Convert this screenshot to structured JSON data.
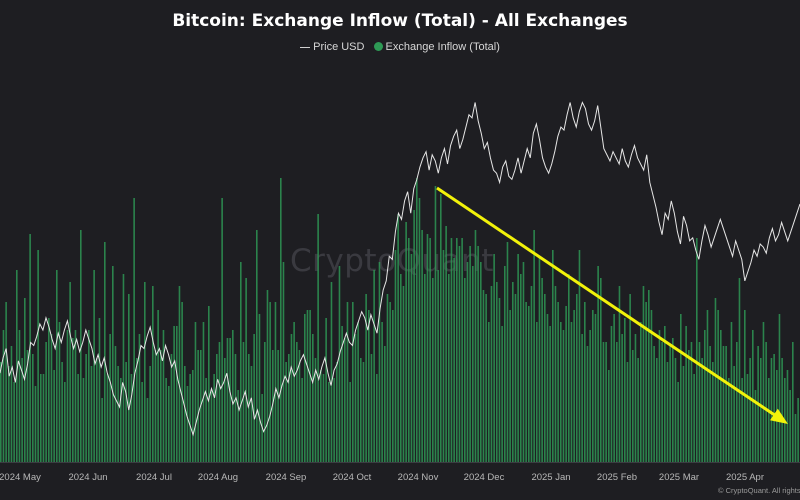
{
  "title": "Bitcoin: Exchange Inflow (Total) - All Exchanges",
  "legend": {
    "price_label": "Price USD",
    "inflow_label": "Exchange Inflow (Total)"
  },
  "watermark": "CryptoQuant",
  "copyright": "© CryptoQuant. All rights",
  "colors": {
    "background": "#1e1e22",
    "inflow_bar": "#2e9a55",
    "price_line": "#e6e6e6",
    "trend_arrow": "#f2f20a"
  },
  "chart_data": {
    "type": "bar",
    "title": "Bitcoin: Exchange Inflow (Total) - All Exchanges",
    "x_range": [
      "2024-04-17",
      "2025-04-28"
    ],
    "x_ticks": [
      "2024 May",
      "2024 Jun",
      "2024 Jul",
      "2024 Aug",
      "2024 Sep",
      "2024 Oct",
      "2024 Nov",
      "2024 Dec",
      "2025 Jan",
      "2025 Feb",
      "2025 Mar",
      "2025 Apr"
    ],
    "y_axis_labels_shown": false,
    "grid": false,
    "legend_position": "top-center",
    "series": [
      {
        "name": "Exchange Inflow (Total)",
        "type": "bar",
        "color": "#2e9a55",
        "values": [
          25,
          33,
          40,
          24,
          29,
          20,
          48,
          33,
          26,
          41,
          28,
          57,
          27,
          19,
          53,
          22,
          22,
          30,
          36,
          32,
          23,
          48,
          35,
          25,
          20,
          33,
          45,
          31,
          33,
          22,
          58,
          21,
          27,
          33,
          24,
          48,
          26,
          36,
          16,
          55,
          22,
          32,
          49,
          29,
          24,
          21,
          47,
          25,
          42,
          22,
          66,
          26,
          32,
          20,
          45,
          16,
          24,
          44,
          28,
          38,
          28,
          33,
          21,
          19,
          27,
          34,
          34,
          44,
          40,
          24,
          19,
          22,
          23,
          35,
          28,
          28,
          35,
          21,
          39,
          18,
          22,
          27,
          30,
          66,
          26,
          31,
          31,
          33,
          27,
          18,
          50,
          30,
          46,
          27,
          24,
          32,
          58,
          37,
          17,
          30,
          43,
          40,
          28,
          40,
          28,
          71,
          50,
          25,
          27,
          32,
          35,
          30,
          28,
          21,
          37,
          38,
          38,
          32,
          26,
          62,
          23,
          22,
          36,
          20,
          45,
          21,
          25,
          49,
          34,
          31,
          40,
          20,
          40,
          32,
          35,
          26,
          25,
          42,
          38,
          27,
          48,
          22,
          50,
          35,
          29,
          42,
          40,
          38,
          53,
          62,
          47,
          44,
          60,
          56,
          52,
          63,
          71,
          66,
          58,
          47,
          57,
          56,
          46,
          69,
          48,
          67,
          53,
          59,
          47,
          56,
          51,
          56,
          54,
          56,
          46,
          50,
          54,
          49,
          58,
          54,
          50,
          43,
          42,
          35,
          44,
          52,
          45,
          41,
          34,
          49,
          55,
          38,
          45,
          42,
          52,
          47,
          50,
          40,
          39,
          44,
          58,
          35,
          51,
          46,
          42,
          37,
          34,
          53,
          44,
          40,
          35,
          33,
          39,
          47,
          35,
          38,
          42,
          53,
          32,
          40,
          29,
          33,
          38,
          37,
          49,
          46,
          30,
          30,
          23,
          34,
          37,
          30,
          44,
          32,
          36,
          25,
          42,
          28,
          32,
          26,
          35,
          44,
          40,
          43,
          38,
          29,
          26,
          33,
          30,
          34,
          25,
          29,
          31,
          26,
          20,
          37,
          24,
          34,
          28,
          30,
          22,
          56,
          30,
          26,
          33,
          38,
          29,
          25,
          41,
          38,
          33,
          29,
          29,
          21,
          35,
          24,
          30,
          46,
          21,
          38,
          22,
          26,
          33,
          18,
          29,
          26,
          35,
          30,
          21,
          26,
          27,
          23,
          37,
          26,
          21,
          23,
          18,
          30,
          12,
          16
        ]
      },
      {
        "name": "Price USD",
        "type": "line",
        "color": "#e6e6e6",
        "values": [
          62000,
          64500,
          66000,
          61500,
          63000,
          60500,
          64000,
          62500,
          61000,
          63500,
          67000,
          66500,
          68000,
          70000,
          69000,
          71000,
          69500,
          67500,
          66000,
          68500,
          67000,
          69000,
          70500,
          68000,
          66000,
          67500,
          65500,
          67000,
          69000,
          67500,
          66000,
          63500,
          65000,
          63000,
          64500,
          62000,
          60500,
          58500,
          57500,
          56500,
          60500,
          59000,
          56000,
          58500,
          62000,
          64000,
          66500,
          66000,
          68000,
          69500,
          67000,
          65000,
          66000,
          64000,
          66500,
          65000,
          63000,
          64000,
          61000,
          59000,
          57000,
          55000,
          53500,
          52000,
          54000,
          56000,
          57500,
          59000,
          57500,
          59500,
          58000,
          61000,
          59500,
          60500,
          62000,
          59000,
          57000,
          58000,
          56000,
          57500,
          59000,
          56500,
          58000,
          54500,
          56000,
          54000,
          52500,
          53500,
          55000,
          57000,
          59500,
          58000,
          60000,
          61500,
          60500,
          63000,
          61500,
          62500,
          64000,
          65000,
          63500,
          62000,
          60500,
          62500,
          61000,
          63000,
          64500,
          62000,
          60000,
          62500,
          63500,
          65500,
          67000,
          68500,
          67000,
          66500,
          69000,
          70500,
          72000,
          71000,
          69000,
          71500,
          70000,
          68500,
          72500,
          75500,
          77000,
          81000,
          80500,
          85000,
          88000,
          87000,
          90000,
          91500,
          88000,
          92000,
          93500,
          95500,
          97000,
          98000,
          95000,
          97500,
          96500,
          94500,
          97000,
          98500,
          96000,
          99000,
          100500,
          101500,
          98500,
          100000,
          102000,
          104000,
          103500,
          106000,
          103000,
          101000,
          98500,
          99500,
          97000,
          95000,
          94500,
          93000,
          95500,
          96500,
          94000,
          93500,
          95000,
          97000,
          94500,
          96500,
          98500,
          97000,
          101000,
          102500,
          100000,
          97000,
          95500,
          94500,
          96000,
          98000,
          100500,
          102000,
          101500,
          104000,
          106000,
          103500,
          102000,
          104500,
          106000,
          105000,
          102500,
          101500,
          103000,
          105500,
          102000,
          98500,
          97500,
          96500,
          98000,
          97000,
          96000,
          98500,
          96500,
          95500,
          97500,
          99000,
          97000,
          96000,
          95000,
          97500,
          93000,
          91000,
          89000,
          86500,
          84500,
          88000,
          87000,
          90000,
          88000,
          85000,
          83000,
          87500,
          86000,
          83500,
          84000,
          82000,
          80500,
          83500,
          86000,
          84500,
          82500,
          84000,
          85500,
          87000,
          85500,
          84000,
          82500,
          81000,
          83500,
          82000,
          80500,
          77000,
          78500,
          80000,
          82000,
          81000,
          83000,
          82500,
          81500,
          84000,
          85500,
          83500,
          84500,
          86500,
          85000,
          83500,
          85000,
          86500,
          88000,
          89500
        ]
      }
    ],
    "annotations": [
      {
        "type": "arrow",
        "color": "#f2f20a",
        "from": [
          "2024-11-11",
          "near Nov 2024 inflow peak"
        ],
        "to": [
          "2025-04-28",
          "near recent inflow lows"
        ],
        "meaning": "downtrend in exchange inflow"
      }
    ]
  }
}
